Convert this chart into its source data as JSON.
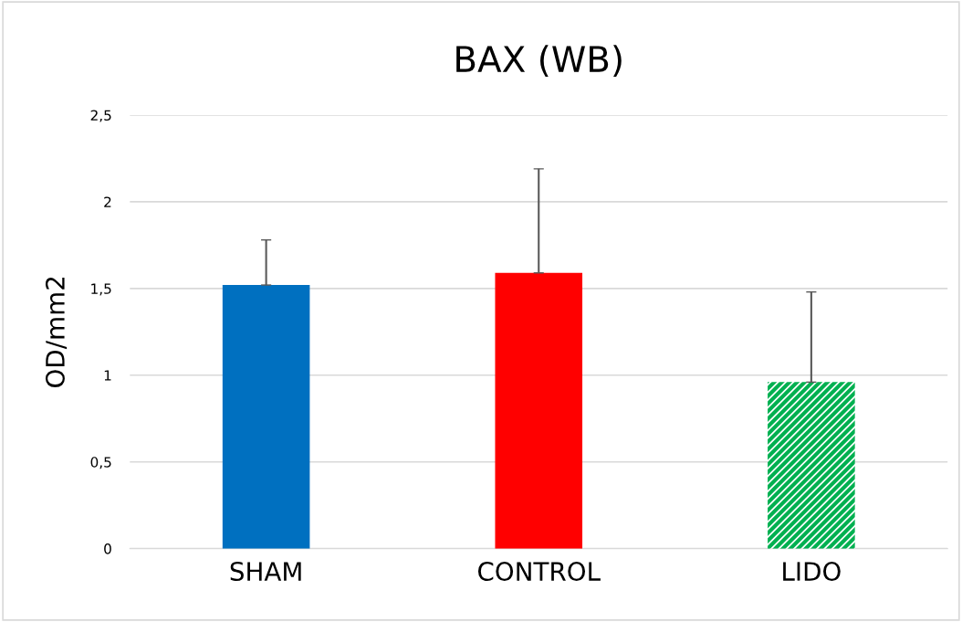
{
  "chart_data": {
    "type": "bar",
    "title": "BAX (WB)",
    "ylabel": "OD/mm2",
    "categories": [
      "SHAM",
      "CONTROL",
      "LIDO"
    ],
    "values": [
      1.52,
      1.59,
      0.96
    ],
    "colors": [
      "#0070c0",
      "#ff0000",
      "#00b050"
    ],
    "errors": [
      [
        1.52,
        1.78
      ],
      [
        1.59,
        2.19
      ],
      [
        0.96,
        1.48
      ]
    ],
    "ylim": [
      0,
      2.5
    ],
    "yticks": [
      0,
      {
        "value": 0.5,
        "label": "0,5"
      },
      1,
      {
        "value": 1.5,
        "label": "1,5"
      },
      2,
      {
        "value": 2.5,
        "label": "2,5"
      }
    ],
    "grid": "y",
    "legend": false
  }
}
